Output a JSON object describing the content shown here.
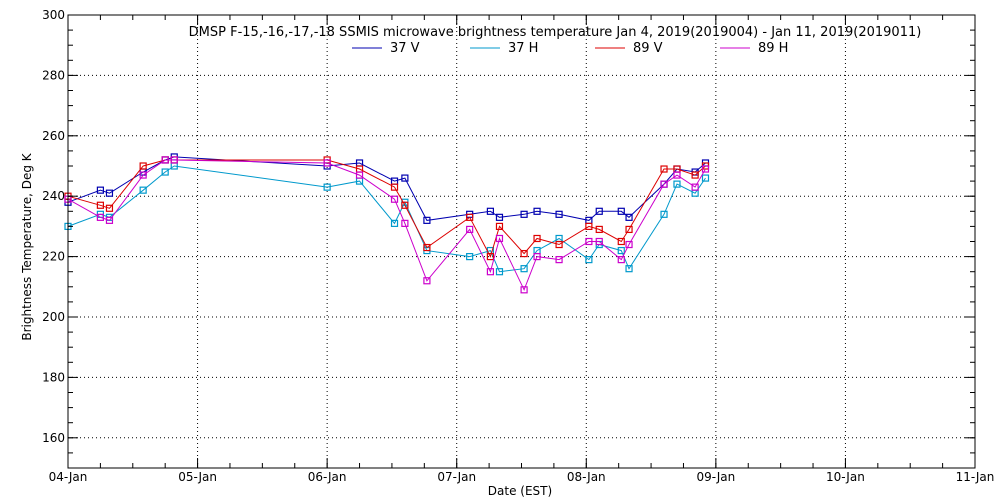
{
  "chart_data": {
    "type": "line",
    "title": "DMSP F-15,-16,-17,-18 SSMIS microwave brightness temperature Jan  4, 2019(2019004) - Jan 11, 2019(2019011)",
    "xlabel": "Date (EST)",
    "ylabel": "Brightness Temperature, Deg K",
    "xlim": [
      0,
      7
    ],
    "ylim": [
      150,
      300
    ],
    "grid": true,
    "legend_position": "top-center",
    "x_tick_labels": [
      "04-Jan",
      "05-Jan",
      "06-Jan",
      "07-Jan",
      "08-Jan",
      "09-Jan",
      "10-Jan",
      "11-Jan"
    ],
    "y_ticks": [
      160,
      180,
      200,
      220,
      240,
      260,
      280,
      300
    ],
    "series": [
      {
        "name": "37 V",
        "color": "#0000b0",
        "x": [
          0.0,
          0.25,
          0.32,
          0.58,
          0.75,
          0.82,
          2.0,
          2.25,
          2.52,
          2.6,
          2.77,
          3.1,
          3.26,
          3.33,
          3.52,
          3.62,
          3.79,
          4.02,
          4.1,
          4.27,
          4.33,
          4.6,
          4.7,
          4.84,
          4.92
        ],
        "y": [
          238,
          242,
          241,
          248,
          252,
          253,
          250,
          251,
          245,
          246,
          232,
          234,
          235,
          233,
          234,
          235,
          234,
          232,
          235,
          235,
          233,
          244,
          249,
          248,
          251
        ]
      },
      {
        "name": "37 H",
        "color": "#0099cc",
        "x": [
          0.0,
          0.25,
          0.32,
          0.58,
          0.75,
          0.82,
          2.0,
          2.25,
          2.52,
          2.6,
          2.77,
          3.1,
          3.26,
          3.33,
          3.52,
          3.62,
          3.79,
          4.02,
          4.1,
          4.27,
          4.33,
          4.6,
          4.7,
          4.84,
          4.92
        ],
        "y": [
          230,
          234,
          233,
          242,
          248,
          250,
          243,
          245,
          231,
          238,
          222,
          220,
          222,
          215,
          216,
          222,
          226,
          219,
          224,
          222,
          216,
          234,
          244,
          241,
          246
        ]
      },
      {
        "name": "89 V",
        "color": "#dd0000",
        "x": [
          0.0,
          0.25,
          0.32,
          0.58,
          0.75,
          0.82,
          2.0,
          2.25,
          2.52,
          2.6,
          2.77,
          3.1,
          3.26,
          3.33,
          3.52,
          3.62,
          3.79,
          4.02,
          4.1,
          4.27,
          4.33,
          4.6,
          4.7,
          4.84,
          4.92
        ],
        "y": [
          240,
          237,
          236,
          250,
          252,
          252,
          252,
          249,
          243,
          237,
          223,
          233,
          220,
          230,
          221,
          226,
          224,
          230,
          229,
          225,
          229,
          249,
          249,
          247,
          250
        ]
      },
      {
        "name": "89 H",
        "color": "#cc00cc",
        "x": [
          0.0,
          0.25,
          0.32,
          0.58,
          0.75,
          0.82,
          2.0,
          2.25,
          2.52,
          2.6,
          2.77,
          3.1,
          3.26,
          3.33,
          3.52,
          3.62,
          3.79,
          4.02,
          4.1,
          4.27,
          4.33,
          4.6,
          4.7,
          4.84,
          4.92
        ],
        "y": [
          239,
          233,
          232,
          247,
          252,
          252,
          251,
          247,
          239,
          231,
          212,
          229,
          215,
          226,
          209,
          220,
          219,
          225,
          225,
          219,
          224,
          244,
          247,
          243,
          249
        ]
      }
    ]
  }
}
